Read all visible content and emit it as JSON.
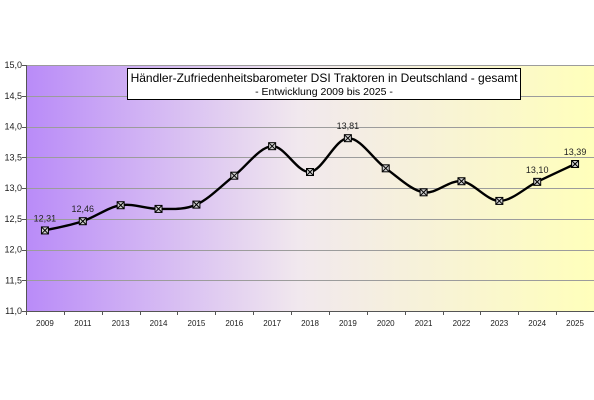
{
  "chart_data": {
    "type": "line",
    "title": "Händler-Zufriedenheitsbarometer DSI Traktoren in Deutschland - gesamt",
    "subtitle": "- Entwicklung 2009 bis 2025 -",
    "categories": [
      "2009",
      "2011",
      "2013",
      "2014",
      "2015",
      "2016",
      "2017",
      "2018",
      "2019",
      "2020",
      "2021",
      "2022",
      "2023",
      "2024",
      "2025"
    ],
    "series": [
      {
        "values": [
          12.31,
          12.46,
          12.72,
          12.66,
          12.73,
          13.2,
          13.68,
          13.26,
          13.81,
          13.32,
          12.93,
          13.11,
          12.79,
          13.1,
          13.39
        ],
        "data_labels": [
          "12,31",
          "12,46",
          null,
          null,
          null,
          null,
          null,
          null,
          "13,81",
          null,
          null,
          null,
          null,
          "13,10",
          "13,39"
        ],
        "smooth": true,
        "marker_shape": "boxed-x",
        "color": "#000000"
      }
    ],
    "ylim": [
      11.0,
      15.0
    ],
    "yticks": [
      11.0,
      11.5,
      12.0,
      12.5,
      13.0,
      13.5,
      14.0,
      14.5,
      15.0
    ],
    "ytick_labels": [
      "11,0",
      "11,5",
      "12,0",
      "12,5",
      "13,0",
      "13,5",
      "14,0",
      "14,5",
      "15,0"
    ],
    "grid": true,
    "legend": "none",
    "colors": {
      "background_gradient": [
        "#b98bf8",
        "#f1e8ee",
        "#ffffbb"
      ],
      "gridline": "#9c9c9c",
      "axis": "#555555",
      "marker_fill": "#cfcfcf"
    }
  }
}
